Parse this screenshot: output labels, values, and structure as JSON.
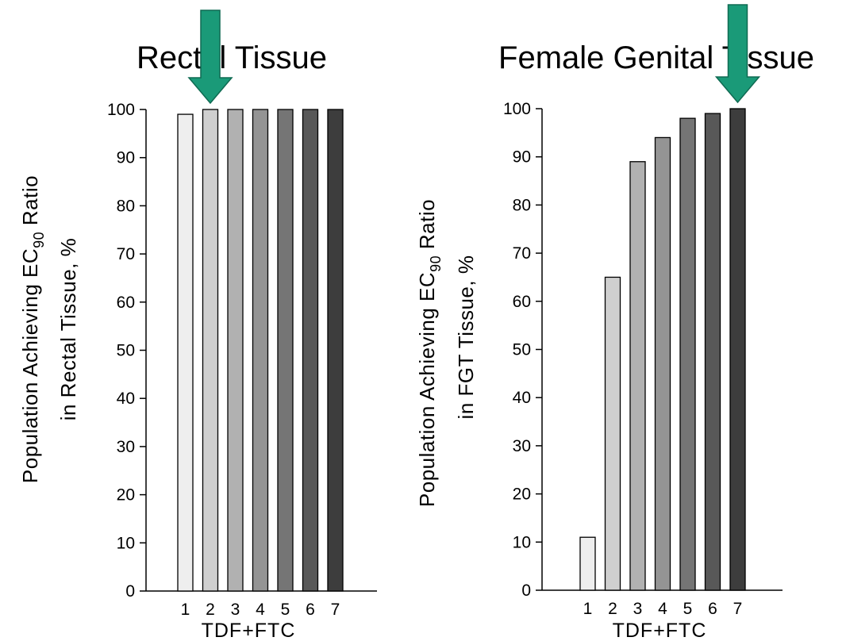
{
  "chart_data": [
    {
      "type": "bar",
      "title": "Rectal Tissue",
      "xlabel": "TDF+FTC",
      "ylabel_line1_pre": "Population Achieving EC",
      "ylabel_line1_sub": "90",
      "ylabel_line1_post": " Ratio",
      "ylabel_line2": "in Rectal Tissue, %",
      "categories": [
        "1",
        "2",
        "3",
        "4",
        "5",
        "6",
        "7"
      ],
      "values": [
        99,
        100,
        100,
        100,
        100,
        100,
        100
      ],
      "ylim": [
        0,
        100
      ],
      "yticks": [
        "0",
        "10",
        "20",
        "30",
        "40",
        "50",
        "60",
        "70",
        "80",
        "90",
        "100"
      ],
      "highlight_category": "2"
    },
    {
      "type": "bar",
      "title": "Female Genital Tissue",
      "xlabel": "TDF+FTC",
      "ylabel_line1_pre": "Population Achieving EC",
      "ylabel_line1_sub": "90",
      "ylabel_line1_post": " Ratio",
      "ylabel_line2": "in FGT Tissue, %",
      "categories": [
        "1",
        "2",
        "3",
        "4",
        "5",
        "6",
        "7"
      ],
      "values": [
        11,
        65,
        89,
        94,
        98,
        99,
        100
      ],
      "ylim": [
        0,
        100
      ],
      "yticks": [
        "0",
        "10",
        "20",
        "30",
        "40",
        "50",
        "60",
        "70",
        "80",
        "90",
        "100"
      ],
      "highlight_category": "7"
    }
  ],
  "colors": {
    "bars": [
      "#eeeeee",
      "#cfcfcf",
      "#b1b1b1",
      "#949494",
      "#757575",
      "#585858",
      "#3d3d3d"
    ],
    "arrow": "#1a9a78"
  },
  "icons": {
    "highlight_marker": "down-arrow-icon"
  }
}
